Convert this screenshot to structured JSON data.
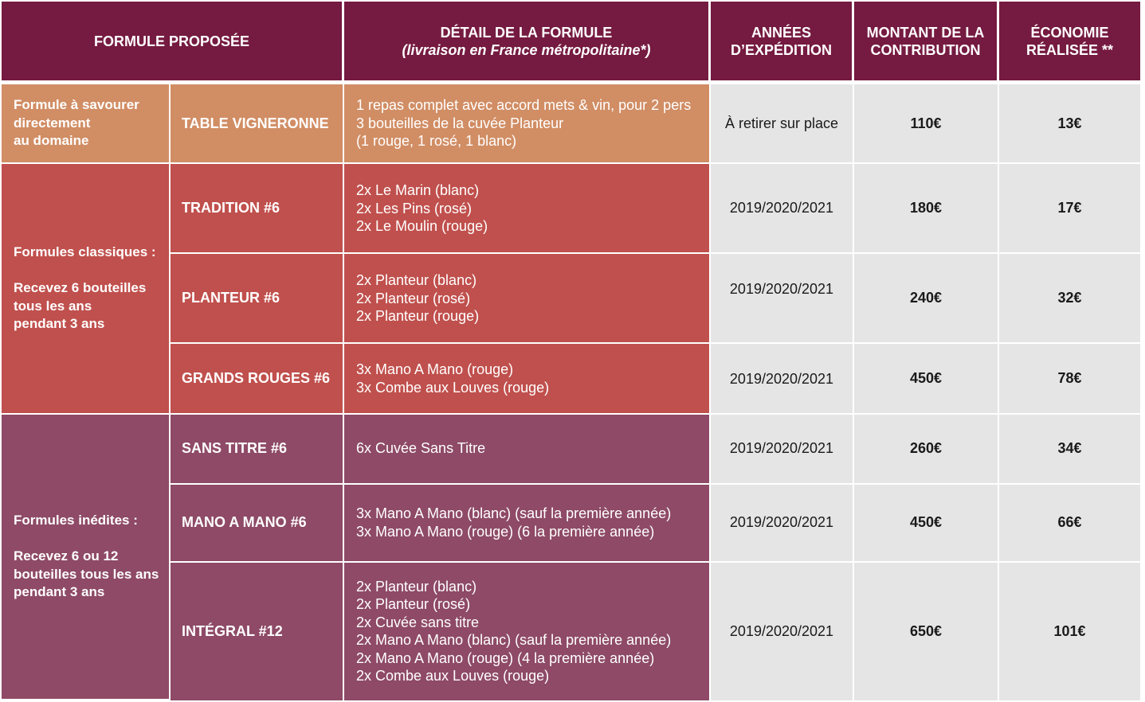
{
  "header": {
    "formula_offered": "FORMULE PROPOSÉE",
    "detail_title": "DÉTAIL DE LA FORMULE",
    "detail_subtitle": "(livraison en France métropolitaine*)",
    "years_line1": "ANNÉES",
    "years_line2": "D’EXPÉDITION",
    "amount_line1": "MONTANT DE LA",
    "amount_line2": "CONTRIBUTION",
    "saving_line1": "ÉCONOMIE",
    "saving_line2": "RÉALISÉE **"
  },
  "groups": {
    "domain": {
      "lines": [
        "Formule à savourer",
        "directement",
        "au domaine"
      ],
      "color": "#d18d64"
    },
    "classic": {
      "title": "Formules classiques :",
      "lines": [
        "Recevez 6 bouteilles",
        "tous les ans",
        "pendant 3 ans"
      ],
      "color": "#c0504d"
    },
    "new": {
      "title": "Formules inédites :",
      "lines": [
        "Recevez 6 ou 12",
        "bouteilles tous les ans",
        "pendant 3 ans"
      ],
      "color": "#8e4a66"
    }
  },
  "rows": [
    {
      "name": "TABLE VIGNERONNE",
      "details": [
        "1 repas complet avec accord mets & vin, pour 2 pers",
        "3 bouteilles de la cuvée Planteur",
        "(1 rouge, 1 rosé, 1 blanc)"
      ],
      "years": "À retirer sur place",
      "amount": "110€",
      "saving": "13€"
    },
    {
      "name": "TRADITION #6",
      "details": [
        "2x Le Marin (blanc)",
        "2x Les Pins (rosé)",
        "2x Le Moulin (rouge)"
      ],
      "years": "2019/2020/2021",
      "amount": "180€",
      "saving": "17€"
    },
    {
      "name": "PLANTEUR #6",
      "details": [
        "2x Planteur (blanc)",
        "2x Planteur (rosé)",
        "2x Planteur (rouge)"
      ],
      "years": "2019/2020/2021",
      "amount": "240€",
      "saving": "32€"
    },
    {
      "name": "GRANDS ROUGES #6",
      "details": [
        "3x Mano A Mano (rouge)",
        "3x Combe aux Louves (rouge)"
      ],
      "years": "2019/2020/2021",
      "amount": "450€",
      "saving": "78€"
    },
    {
      "name": "SANS TITRE #6",
      "details": [
        "6x Cuvée Sans Titre"
      ],
      "years": "2019/2020/2021",
      "amount": "260€",
      "saving": "34€"
    },
    {
      "name": "MANO A MANO #6",
      "details": [
        "3x Mano A Mano (blanc) (sauf la première année)",
        "3x Mano A Mano (rouge) (6 la première année)"
      ],
      "years": "2019/2020/2021",
      "amount": "450€",
      "saving": "66€"
    },
    {
      "name": "INTÉGRAL #12",
      "details": [
        "2x Planteur (blanc)",
        "2x Planteur (rosé)",
        "2x Cuvée sans titre",
        "2x Mano A Mano (blanc) (sauf la première année)",
        "2x Mano A Mano (rouge) (4 la première année)",
        "2x Combe aux Louves (rouge)"
      ],
      "years": "2019/2020/2021",
      "amount": "650€",
      "saving": "101€"
    }
  ],
  "colors": {
    "header": "#751a40",
    "orange": "#d18d64",
    "red": "#c0504d",
    "plum": "#8e4a66",
    "value_cell": "#e5e5e5"
  }
}
